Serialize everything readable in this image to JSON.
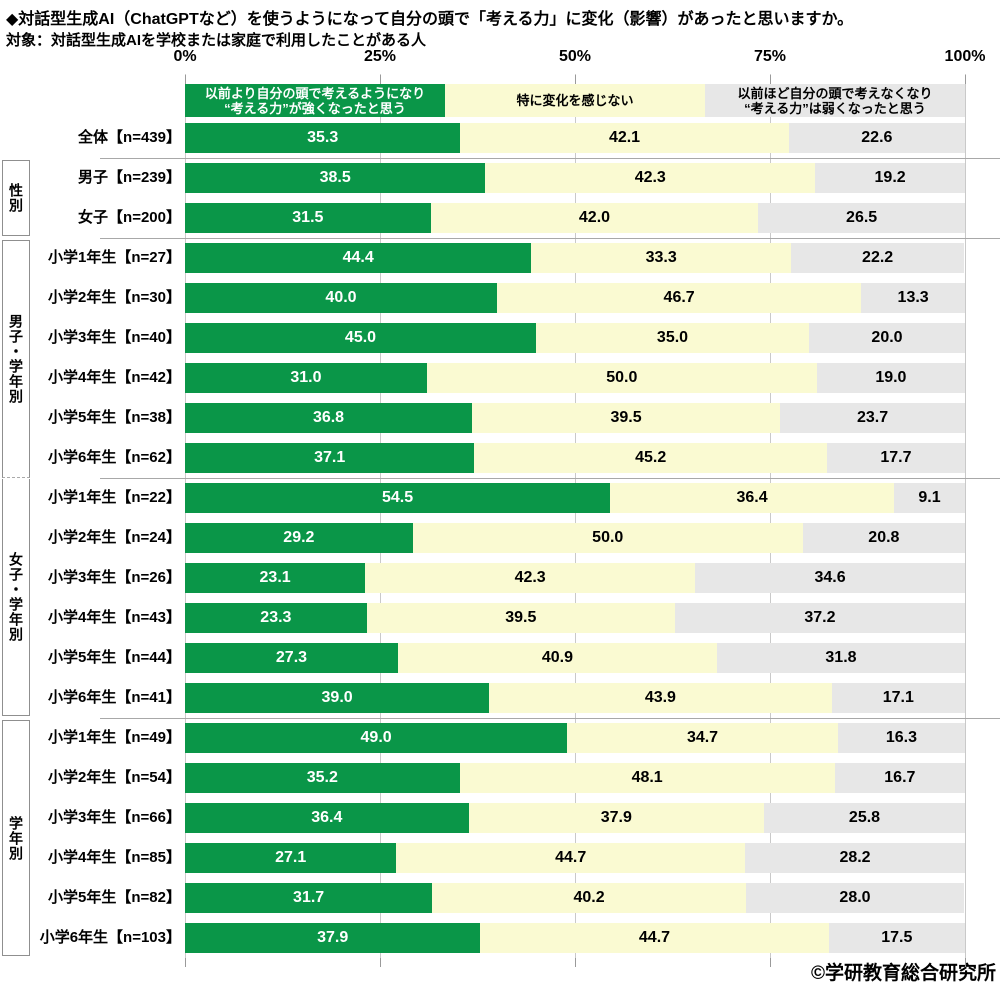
{
  "chart_data": {
    "type": "bar",
    "orientation": "horizontal-stacked",
    "title": "◆対話型生成AI（ChatGPTなど）を使うようになって自分の頭で「考える力」に変化（影響）があったと思いますか。",
    "subtitle": "対象：対話型生成AIを学校または家庭で利用したことがある人",
    "source": "©学研教育総合研究所",
    "xlim": [
      0,
      100
    ],
    "x_ticks": [
      "0%",
      "25%",
      "50%",
      "75%",
      "100%"
    ],
    "grid": true,
    "legend_position": "top",
    "legend": [
      {
        "label": "以前より自分の頭で考えるようになり\n“考える力”が強くなったと思う",
        "color": "#0a9648",
        "text_color": "#ffffff"
      },
      {
        "label": "特に変化を感じない",
        "color": "#fafad2",
        "text_color": "#000000"
      },
      {
        "label": "以前ほど自分の頭で考えなくなり\n“考える力”は弱くなったと思う",
        "color": "#e7e7e7",
        "text_color": "#000000"
      }
    ],
    "groups": [
      {
        "name": "",
        "rows": [
          {
            "label": "全体【n=439】",
            "values": [
              35.3,
              42.1,
              22.6
            ]
          }
        ]
      },
      {
        "name": "性別",
        "rows": [
          {
            "label": "男子【n=239】",
            "values": [
              38.5,
              42.3,
              19.2
            ]
          },
          {
            "label": "女子【n=200】",
            "values": [
              31.5,
              42.0,
              26.5
            ]
          }
        ]
      },
      {
        "name": "男子・学年別",
        "rows": [
          {
            "label": "小学1年生【n=27】",
            "values": [
              44.4,
              33.3,
              22.2
            ]
          },
          {
            "label": "小学2年生【n=30】",
            "values": [
              40.0,
              46.7,
              13.3
            ]
          },
          {
            "label": "小学3年生【n=40】",
            "values": [
              45.0,
              35.0,
              20.0
            ]
          },
          {
            "label": "小学4年生【n=42】",
            "values": [
              31.0,
              50.0,
              19.0
            ]
          },
          {
            "label": "小学5年生【n=38】",
            "values": [
              36.8,
              39.5,
              23.7
            ]
          },
          {
            "label": "小学6年生【n=62】",
            "values": [
              37.1,
              45.2,
              17.7
            ]
          }
        ]
      },
      {
        "name": "女子・学年別",
        "rows": [
          {
            "label": "小学1年生【n=22】",
            "values": [
              54.5,
              36.4,
              9.1
            ]
          },
          {
            "label": "小学2年生【n=24】",
            "values": [
              29.2,
              50.0,
              20.8
            ]
          },
          {
            "label": "小学3年生【n=26】",
            "values": [
              23.1,
              42.3,
              34.6
            ]
          },
          {
            "label": "小学4年生【n=43】",
            "values": [
              23.3,
              39.5,
              37.2
            ]
          },
          {
            "label": "小学5年生【n=44】",
            "values": [
              27.3,
              40.9,
              31.8
            ]
          },
          {
            "label": "小学6年生【n=41】",
            "values": [
              39.0,
              43.9,
              17.1
            ]
          }
        ]
      },
      {
        "name": "学年別",
        "rows": [
          {
            "label": "小学1年生【n=49】",
            "values": [
              49.0,
              34.7,
              16.3
            ]
          },
          {
            "label": "小学2年生【n=54】",
            "values": [
              35.2,
              48.1,
              16.7
            ]
          },
          {
            "label": "小学3年生【n=66】",
            "values": [
              36.4,
              37.9,
              25.8
            ]
          },
          {
            "label": "小学4年生【n=85】",
            "values": [
              27.1,
              44.7,
              28.2
            ]
          },
          {
            "label": "小学5年生【n=82】",
            "values": [
              31.7,
              40.2,
              28.0
            ]
          },
          {
            "label": "小学6年生【n=103】",
            "values": [
              37.9,
              44.7,
              17.5
            ]
          }
        ]
      }
    ]
  }
}
